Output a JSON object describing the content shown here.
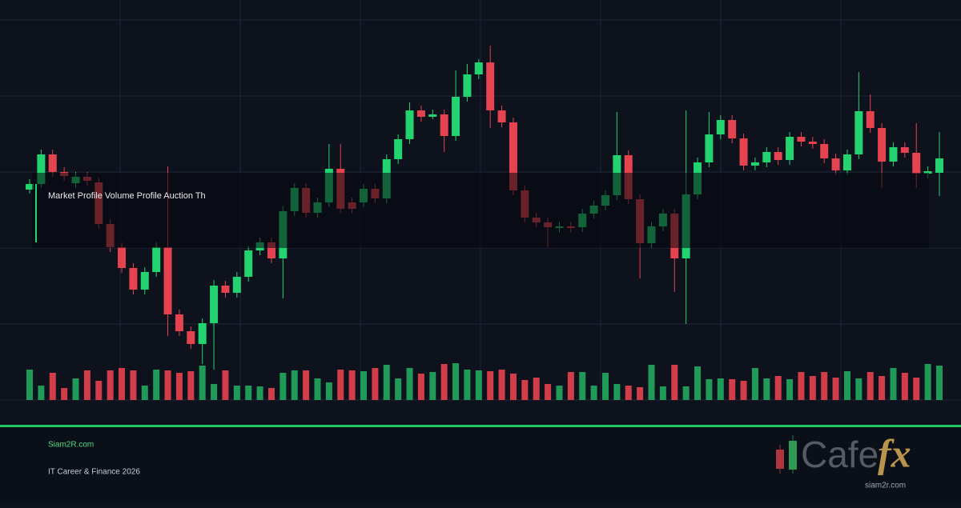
{
  "chart_data": {
    "type": "candlestick",
    "up_color": "#22d36f",
    "down_color": "#e5434f",
    "volume_up_color": "#1f9a58",
    "volume_down_color": "#d23d4a",
    "ylim": [
      0,
      500
    ],
    "volume_ylim": [
      0,
      100
    ],
    "open": [
      263,
      270,
      307,
      285,
      271,
      279,
      272,
      220,
      191,
      165,
      138,
      160,
      191,
      107,
      86,
      70,
      96,
      143,
      134,
      154,
      187,
      197,
      177,
      236,
      265,
      234,
      247,
      289,
      247,
      247,
      264,
      252,
      301,
      326,
      362,
      354,
      357,
      330,
      379,
      407,
      422,
      362,
      347,
      262,
      228,
      222,
      215,
      217,
      216,
      233,
      243,
      256,
      306,
      251,
      196,
      217,
      233,
      177,
      257,
      297,
      332,
      350,
      327,
      293,
      297,
      310,
      300,
      329,
      323,
      320,
      302,
      287,
      307,
      361,
      340,
      298,
      316,
      309,
      283,
      284
    ],
    "high": [
      276,
      313,
      313,
      291,
      285,
      285,
      278,
      226,
      197,
      171,
      166,
      197,
      292,
      113,
      92,
      102,
      150,
      149,
      160,
      193,
      203,
      203,
      242,
      271,
      271,
      253,
      320,
      320,
      253,
      270,
      270,
      307,
      332,
      372,
      368,
      363,
      363,
      412,
      420,
      426,
      443,
      368,
      353,
      268,
      234,
      228,
      223,
      223,
      239,
      249,
      262,
      360,
      312,
      257,
      223,
      239,
      239,
      362,
      303,
      360,
      356,
      356,
      333,
      303,
      316,
      316,
      335,
      335,
      329,
      326,
      308,
      313,
      410,
      382,
      346,
      322,
      322,
      346,
      292,
      335
    ],
    "low": [
      258,
      265,
      279,
      274,
      265,
      268,
      214,
      185,
      159,
      132,
      132,
      154,
      80,
      80,
      64,
      45,
      38,
      128,
      128,
      148,
      181,
      171,
      127,
      230,
      228,
      228,
      241,
      233,
      233,
      241,
      246,
      246,
      295,
      320,
      348,
      351,
      310,
      324,
      373,
      401,
      340,
      341,
      256,
      222,
      216,
      191,
      209,
      209,
      210,
      227,
      237,
      250,
      245,
      152,
      190,
      211,
      135,
      95,
      251,
      291,
      326,
      321,
      287,
      287,
      291,
      294,
      294,
      317,
      314,
      296,
      281,
      281,
      301,
      334,
      265,
      292,
      303,
      265,
      277,
      255
    ],
    "close": [
      270,
      307,
      285,
      280,
      279,
      274,
      220,
      191,
      165,
      138,
      160,
      191,
      107,
      86,
      70,
      96,
      143,
      134,
      154,
      187,
      197,
      177,
      236,
      265,
      234,
      247,
      289,
      239,
      239,
      264,
      252,
      301,
      326,
      362,
      354,
      357,
      330,
      379,
      407,
      422,
      362,
      347,
      262,
      228,
      222,
      216,
      217,
      215,
      233,
      243,
      256,
      306,
      251,
      196,
      217,
      233,
      177,
      257,
      297,
      332,
      350,
      327,
      293,
      297,
      310,
      300,
      329,
      323,
      320,
      302,
      287,
      307,
      361,
      340,
      298,
      316,
      309,
      283,
      286,
      302
    ],
    "volume": [
      38,
      18,
      34,
      15,
      27,
      37,
      24,
      37,
      40,
      37,
      18,
      38,
      37,
      34,
      36,
      43,
      20,
      37,
      18,
      18,
      17,
      15,
      34,
      37,
      37,
      27,
      22,
      38,
      37,
      36,
      40,
      44,
      27,
      40,
      33,
      35,
      45,
      46,
      38,
      37,
      36,
      38,
      33,
      25,
      28,
      20,
      18,
      35,
      35,
      18,
      34,
      20,
      18,
      16,
      44,
      17,
      44,
      17,
      42,
      26,
      27,
      26,
      24,
      40,
      27,
      30,
      26,
      35,
      30,
      35,
      28,
      36,
      27,
      35,
      30,
      40,
      34,
      28,
      45,
      43
    ]
  },
  "overlay_text": "Market Profile Volume Profile Auction Th",
  "footer": {
    "site": "Siam2R.com",
    "tagline": "IT Career & Finance 2026"
  },
  "logo": {
    "word": "Cafe",
    "accent": "fx",
    "url": "siam2r.com"
  }
}
